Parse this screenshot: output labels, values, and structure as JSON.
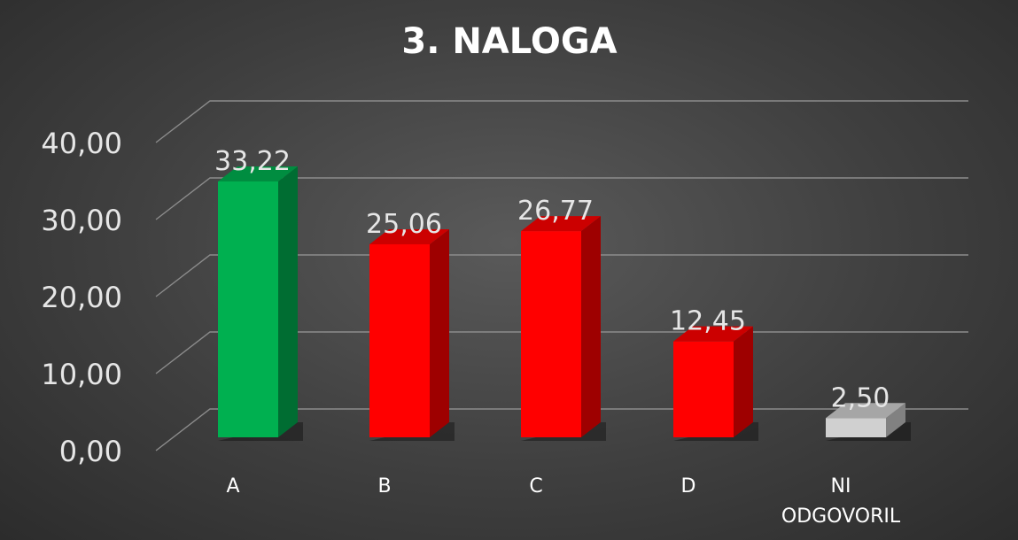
{
  "chart_data": {
    "type": "bar",
    "title": "3. NALOGA",
    "categories": [
      "A",
      "B",
      "C",
      "D",
      "NI ODGOVORIL"
    ],
    "values": [
      33.22,
      25.06,
      26.77,
      12.45,
      2.5
    ],
    "value_labels": [
      "33,22",
      "25,06",
      "26,77",
      "12,45",
      "2,50"
    ],
    "yticks": [
      "0,00",
      "10,00",
      "20,00",
      "30,00",
      "40,00"
    ],
    "ylim": [
      0,
      40
    ],
    "xlabel": "",
    "ylabel": "",
    "grid": true,
    "legend": "none",
    "bar_colors": [
      "#00b050",
      "#ff0000",
      "#ff0000",
      "#ff0000",
      "#d0d0d0"
    ]
  }
}
